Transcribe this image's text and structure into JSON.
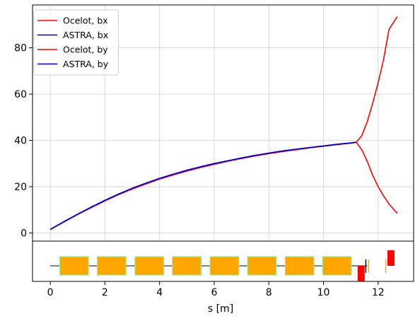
{
  "chart_data": {
    "type": "line",
    "xlabel": "s [m]",
    "ylabel": "",
    "title": "",
    "xlim": [
      -0.65,
      13.3
    ],
    "ylim": [
      -3.5,
      98.5
    ],
    "x_ticks": [
      0,
      2,
      4,
      6,
      8,
      10,
      12
    ],
    "x_tick_labels": [
      "0",
      "2",
      "4",
      "6",
      "8",
      "10",
      "12"
    ],
    "y_ticks": [
      0,
      20,
      40,
      60,
      80
    ],
    "y_tick_labels": [
      "0",
      "20",
      "40",
      "60",
      "80"
    ],
    "grid": true,
    "legend_position": "top-left",
    "colors": {
      "ocelot": "#ff0000",
      "astra": "#0000cc"
    },
    "series": [
      {
        "name": "Ocelot, bx",
        "color": "#ff0000",
        "x": [
          0.0,
          0.5,
          1.0,
          1.5,
          2.0,
          2.5,
          3.0,
          3.5,
          4.0,
          4.5,
          5.0,
          5.5,
          6.0,
          6.5,
          7.0,
          7.5,
          8.0,
          8.5,
          9.0,
          9.5,
          10.0,
          10.5,
          11.0,
          11.2,
          11.4,
          11.6,
          11.8,
          12.0,
          12.2,
          12.4,
          12.7
        ],
        "y": [
          1.5,
          4.8,
          8.0,
          11.0,
          13.9,
          16.6,
          19.0,
          21.2,
          23.3,
          25.1,
          26.8,
          28.3,
          29.7,
          31.0,
          32.2,
          33.3,
          34.3,
          35.2,
          36.0,
          36.8,
          37.5,
          38.2,
          38.8,
          39.2,
          42.0,
          48.0,
          56.0,
          65.0,
          75.0,
          88.0,
          93.5
        ]
      },
      {
        "name": "ASTRA, bx",
        "color": "#0000cc",
        "x": [
          0.0,
          0.5,
          1.0,
          1.5,
          2.0,
          2.5,
          3.0,
          3.5,
          4.0,
          4.5,
          5.0,
          5.5,
          6.0,
          6.5,
          7.0,
          7.5,
          8.0,
          8.5,
          9.0,
          9.5,
          10.0,
          10.5,
          11.0,
          11.2
        ],
        "y": [
          1.5,
          4.9,
          8.1,
          11.2,
          14.1,
          16.8,
          19.3,
          21.5,
          23.6,
          25.4,
          27.1,
          28.6,
          30.0,
          31.2,
          32.4,
          33.5,
          34.5,
          35.4,
          36.2,
          36.9,
          37.6,
          38.3,
          38.9,
          39.2
        ]
      },
      {
        "name": "Ocelot, by",
        "color": "#ff0000",
        "x": [
          0.0,
          0.5,
          1.0,
          1.5,
          2.0,
          2.5,
          3.0,
          3.5,
          4.0,
          4.5,
          5.0,
          5.5,
          6.0,
          6.5,
          7.0,
          7.5,
          8.0,
          8.5,
          9.0,
          9.5,
          10.0,
          10.5,
          11.0,
          11.2,
          11.4,
          11.6,
          11.8,
          12.0,
          12.2,
          12.4,
          12.7
        ],
        "y": [
          1.5,
          4.8,
          8.0,
          11.0,
          13.9,
          16.6,
          19.0,
          21.2,
          23.3,
          25.1,
          26.8,
          28.3,
          29.7,
          31.0,
          32.2,
          33.3,
          34.3,
          35.2,
          36.0,
          36.8,
          37.5,
          38.2,
          38.8,
          39.2,
          36.0,
          31.0,
          25.0,
          20.0,
          16.0,
          12.5,
          8.5
        ]
      },
      {
        "name": "ASTRA, by",
        "color": "#0000cc",
        "x": [
          0.0,
          0.5,
          1.0,
          1.5,
          2.0,
          2.5,
          3.0,
          3.5,
          4.0,
          4.5,
          5.0,
          5.5,
          6.0,
          6.5,
          7.0,
          7.5,
          8.0,
          8.5,
          9.0,
          9.5,
          10.0,
          10.5,
          11.0,
          11.2
        ],
        "y": [
          1.5,
          4.9,
          8.1,
          11.2,
          14.1,
          16.8,
          19.3,
          21.5,
          23.6,
          25.4,
          27.1,
          28.6,
          30.0,
          31.2,
          32.4,
          33.5,
          34.5,
          35.4,
          36.2,
          36.9,
          37.6,
          38.3,
          38.9,
          39.2
        ]
      }
    ],
    "lattice": {
      "beamline_x": [
        0.0,
        11.6
      ],
      "cavities": [
        {
          "start": 0.35,
          "end": 1.4
        },
        {
          "start": 1.72,
          "end": 2.77
        },
        {
          "start": 3.1,
          "end": 4.15
        },
        {
          "start": 4.47,
          "end": 5.52
        },
        {
          "start": 5.85,
          "end": 6.9
        },
        {
          "start": 7.22,
          "end": 8.27
        },
        {
          "start": 8.6,
          "end": 9.65
        },
        {
          "start": 9.97,
          "end": 11.02
        }
      ],
      "cavity_fill": "#ffa500",
      "cavity_edge": "#90ee90",
      "quadrupoles": [
        {
          "center": 11.38,
          "strength": -1.0
        },
        {
          "center": 12.47,
          "strength": 1.0
        }
      ],
      "quad_color": "#ff0000",
      "markers": [
        {
          "s": 11.55,
          "color": "#000000"
        },
        {
          "s": 11.65,
          "color": "#ffa500"
        },
        {
          "s": 12.28,
          "color": "#ffa500"
        }
      ]
    }
  }
}
